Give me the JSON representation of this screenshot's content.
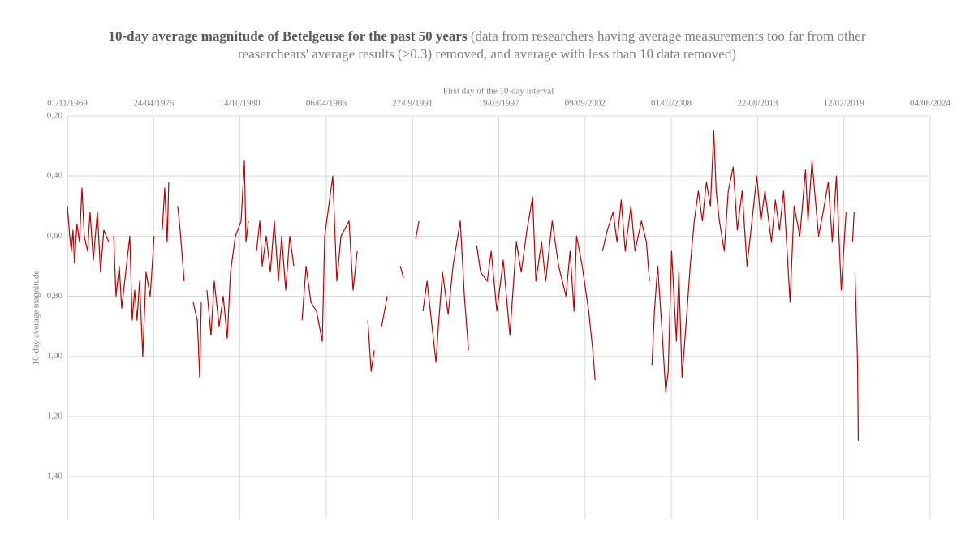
{
  "chart_data": {
    "type": "line",
    "title": "10-day average magnitude of  Betelgeuse for the past 50 years",
    "subtitle": "(data from researchers having average measurements too far from other reaserchears' average results (>0.3) removed, and average with less than 10 data removed)",
    "x_label": "First day of the 10-day interval",
    "y_label": "10-day average magnitude",
    "x_axis_position": "top",
    "y_inverted": true,
    "grid": true,
    "xlim": [
      "1969-11-01",
      "2024-08-04"
    ],
    "xticks": [
      {
        "value": "1969-11-01",
        "label": "01/11/1969"
      },
      {
        "value": "1975-04-24",
        "label": "24/04/1975"
      },
      {
        "value": "1980-10-14",
        "label": "14/10/1980"
      },
      {
        "value": "1986-04-06",
        "label": "06/04/1986"
      },
      {
        "value": "1991-09-27",
        "label": "27/09/1991"
      },
      {
        "value": "1997-03-19",
        "label": "19/03/1997"
      },
      {
        "value": "2002-09-09",
        "label": "09/09/2002"
      },
      {
        "value": "2008-03-01",
        "label": "01/03/2008"
      },
      {
        "value": "2013-08-22",
        "label": "22/08/2013"
      },
      {
        "value": "2019-02-12",
        "label": "12/02/2019"
      },
      {
        "value": "2024-08-04",
        "label": "04/08/2024"
      }
    ],
    "ylim": [
      0.2,
      1.54
    ],
    "yticks": [
      {
        "value": 0.2,
        "label": "0,20"
      },
      {
        "value": 0.4,
        "label": "0,40"
      },
      {
        "value": 0.6,
        "label": "0,60"
      },
      {
        "value": 0.8,
        "label": "0,80"
      },
      {
        "value": 1.0,
        "label": "1,00"
      },
      {
        "value": 1.2,
        "label": "1,20"
      },
      {
        "value": 1.4,
        "label": "1,40"
      }
    ],
    "series": [
      {
        "color": "#c00000",
        "x": [
          "1969-11-01",
          "1969-12-25",
          "1970-02-01",
          "1970-03-10",
          "1970-04-15",
          "1970-06-12",
          "1970-08-08",
          "1970-10-05",
          "1970-11-28",
          "1971-02-13",
          "1971-04-10",
          "1971-06-25",
          "1971-09-27",
          "1971-12-10",
          "1972-02-24",
          "1972-06-17",
          "1972-08-10",
          "1972-10-09",
          "1972-12-03",
          "1973-02-16",
          "1973-04-13",
          "1973-07-16",
          "1973-10-18",
          "1973-12-13",
          "1974-02-08",
          "1974-04-04",
          "1974-06-01",
          "1974-08-15",
          "1974-10-30",
          "1975-02-03",
          "1975-05-05",
          "1975-08-01",
          "1975-11-10",
          "1976-01-05",
          "1976-03-02",
          "1976-04-08",
          "1976-07-20",
          "1976-11-02",
          "1976-12-28",
          "1977-04-01",
          "1977-07-15",
          "1977-10-27",
          "1978-01-30",
          "1978-03-26",
          "1978-05-02",
          "1978-07-20",
          "1978-09-10",
          "1978-12-13",
          "1979-02-27",
          "1979-06-20",
          "1979-09-23",
          "1979-12-25",
          "1980-03-10",
          "1980-07-01",
          "1980-11-10",
          "1981-01-25",
          "1981-03-03",
          "1981-04-28",
          "1981-08-01",
          "1981-11-02",
          "1982-01-18",
          "1982-03-14",
          "1982-06-17",
          "1982-09-19",
          "1982-12-20",
          "1983-03-25",
          "1983-06-09",
          "1983-09-10",
          "1983-12-13",
          "1984-03-17",
          "1984-06-20",
          "1984-09-23",
          "1984-12-25",
          "1985-04-17",
          "1985-08-25",
          "1986-01-05",
          "1986-03-02",
          "1986-09-05",
          "1986-12-08",
          "1987-03-14",
          "1987-09-17",
          "1987-12-20",
          "1988-03-25",
          "1988-07-20",
          "1988-11-25",
          "1989-02-10",
          "1989-04-23",
          "1989-07-20",
          "1989-10-12",
          "1990-02-20",
          "1990-07-20",
          "1990-12-17",
          "1991-03-03",
          "1991-08-01",
          "1991-12-10",
          "1992-02-24",
          "1992-04-10",
          "1992-05-26",
          "1992-08-29",
          "1993-03-25",
          "1993-05-19",
          "1993-08-22",
          "1994-01-01",
          "1994-04-23",
          "1994-10-08",
          "1995-01-12",
          "1995-04-17",
          "1995-07-20",
          "1995-10-23",
          "1996-01-23",
          "1996-06-24",
          "1996-09-24",
          "1997-02-03",
          "1997-07-01",
          "1997-12-01",
          "1998-05-01",
          "1998-08-22",
          "1999-01-01",
          "1999-05-12",
          "1999-07-27",
          "1999-12-06",
          "2000-03-10",
          "2000-08-08",
          "2001-01-05",
          "2001-06-24",
          "2001-09-27",
          "2001-12-28",
          "2002-02-24",
          "2002-07-05",
          "2002-12-03",
          "2003-03-07",
          "2003-05-01",
          "2003-07-20",
          "2003-10-18",
          "2004-02-08",
          "2004-06-20",
          "2004-09-20",
          "2004-12-25",
          "2005-03-28",
          "2005-08-08",
          "2005-11-10",
          "2006-04-08",
          "2006-08-01",
          "2006-10-12",
          "2006-11-10",
          "2006-12-08",
          "2007-02-03",
          "2007-04-20",
          "2007-07-23",
          "2007-10-23",
          "2007-12-20",
          "2008-03-07",
          "2008-06-28",
          "2008-08-22",
          "2008-11-05",
          "2009-02-27",
          "2009-05-12",
          "2009-08-15",
          "2009-11-17",
          "2010-02-20",
          "2010-05-22",
          "2010-08-25",
          "2010-11-10",
          "2011-01-05",
          "2011-03-21",
          "2011-07-12",
          "2011-10-12",
          "2012-02-03",
          "2012-05-08",
          "2012-08-29",
          "2012-12-20",
          "2013-04-13",
          "2013-08-04",
          "2013-11-06",
          "2014-02-08",
          "2014-07-08",
          "2014-10-08",
          "2015-01-12",
          "2015-04-17",
          "2015-09-13",
          "2015-12-16",
          "2016-04-27",
          "2016-09-05",
          "2016-11-02",
          "2017-02-03",
          "2017-07-05",
          "2017-11-13",
          "2018-02-14",
          "2018-05-19",
          "2018-08-22",
          "2018-12-13",
          "2019-04-04",
          "2019-06-15",
          "2019-09-01",
          "2019-10-08",
          "2019-10-18",
          "2019-10-27",
          "2019-12-06",
          "2019-12-25",
          "2020-01-12"
        ],
        "values": [
          0.5,
          0.6,
          0.65,
          0.58,
          0.69,
          0.56,
          0.62,
          0.44,
          0.6,
          0.65,
          0.52,
          0.68,
          0.52,
          0.72,
          0.58,
          0.62,
          null,
          0.6,
          0.8,
          0.7,
          0.84,
          0.72,
          0.6,
          0.88,
          0.78,
          0.88,
          0.75,
          1.0,
          0.72,
          0.8,
          0.6,
          null,
          0.58,
          0.44,
          0.62,
          0.42,
          null,
          0.5,
          0.58,
          0.75,
          null,
          0.82,
          0.88,
          1.07,
          0.82,
          null,
          0.78,
          0.93,
          0.75,
          0.9,
          0.8,
          0.94,
          0.72,
          0.6,
          0.55,
          0.35,
          0.62,
          0.55,
          null,
          0.65,
          0.55,
          0.7,
          0.6,
          0.72,
          0.55,
          0.75,
          0.6,
          0.78,
          0.6,
          0.7,
          null,
          0.88,
          0.7,
          0.82,
          0.85,
          0.95,
          0.6,
          0.4,
          0.75,
          0.6,
          0.55,
          0.78,
          0.65,
          null,
          0.88,
          1.05,
          0.98,
          null,
          0.9,
          0.8,
          null,
          0.7,
          0.74,
          null,
          0.61,
          0.55,
          null,
          0.85,
          0.75,
          1.02,
          0.9,
          0.72,
          0.86,
          0.7,
          0.55,
          0.8,
          0.98,
          null,
          0.63,
          0.72,
          0.75,
          0.65,
          0.85,
          0.68,
          0.93,
          0.62,
          0.72,
          0.58,
          0.47,
          0.75,
          0.62,
          0.75,
          0.55,
          0.7,
          0.8,
          0.65,
          0.85,
          0.6,
          0.7,
          0.85,
          0.98,
          1.08,
          null,
          0.65,
          0.58,
          0.52,
          0.62,
          0.48,
          0.65,
          0.5,
          0.65,
          0.55,
          0.62,
          0.75,
          null,
          1.03,
          0.85,
          0.7,
          0.9,
          1.12,
          1.05,
          0.65,
          0.95,
          0.72,
          1.07,
          0.85,
          0.7,
          0.55,
          0.45,
          0.55,
          0.42,
          0.5,
          0.25,
          0.45,
          0.55,
          0.65,
          0.45,
          0.37,
          0.58,
          0.45,
          0.7,
          0.55,
          0.4,
          0.55,
          0.45,
          0.62,
          0.48,
          0.58,
          0.45,
          0.82,
          0.5,
          0.6,
          0.38,
          0.55,
          0.35,
          0.6,
          0.5,
          0.42,
          0.62,
          0.4,
          0.78,
          0.52,
          null,
          0.62,
          0.52,
          null,
          0.72,
          0.92,
          1.02,
          1.28
        ]
      }
    ]
  }
}
